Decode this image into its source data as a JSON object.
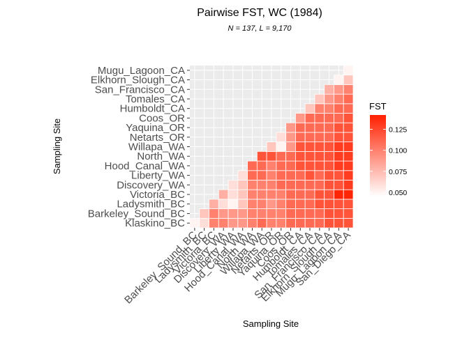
{
  "chart_data": {
    "type": "heatmap",
    "title": "Pairwise FST, WC (1984)",
    "subtitle": "N = 137, L = 9,170",
    "xlabel": "Sampling Site",
    "ylabel": "Sampling Site",
    "x_categories": [
      "Barkeley_Sound_BC",
      "Ladysmith_BC",
      "Victoria_BC",
      "Discovery_WA",
      "Liberty_WA",
      "Hood_Canal_WA",
      "North_WA",
      "Willapa_WA",
      "Netarts_OR",
      "Yaquina_OR",
      "Coos_OR",
      "Humboldt_CA",
      "Tomales_CA",
      "San_Francisco_CA",
      "Elkhorn_Slough_CA",
      "Mugu_Lagoon_CA",
      "San_Diego_CA"
    ],
    "y_categories": [
      "Klaskino_BC",
      "Barkeley_Sound_BC",
      "Ladysmith_BC",
      "Victoria_BC",
      "Discovery_WA",
      "Liberty_WA",
      "Hood_Canal_WA",
      "North_WA",
      "Willapa_WA",
      "Netarts_OR",
      "Yaquina_OR",
      "Coos_OR",
      "Humboldt_CA",
      "Tomales_CA",
      "San_Francisco_CA",
      "Elkhorn_Slough_CA",
      "Mugu_Lagoon_CA"
    ],
    "values": [
      [
        0.05,
        0.06,
        0.1,
        0.1,
        0.09,
        0.09,
        0.1,
        0.11,
        0.1,
        0.1,
        0.11,
        0.11,
        0.11,
        0.11,
        0.12,
        0.12,
        0.12
      ],
      [
        null,
        0.07,
        0.1,
        0.09,
        0.09,
        0.09,
        0.1,
        0.1,
        0.1,
        0.1,
        0.11,
        0.11,
        0.11,
        0.11,
        0.12,
        0.12,
        0.12
      ],
      [
        null,
        null,
        0.08,
        0.06,
        0.05,
        0.07,
        0.1,
        0.1,
        0.09,
        0.1,
        0.11,
        0.11,
        0.11,
        0.12,
        0.12,
        0.12,
        0.12
      ],
      [
        null,
        null,
        null,
        0.08,
        0.06,
        0.07,
        0.1,
        0.1,
        0.1,
        0.1,
        0.11,
        0.11,
        0.11,
        0.12,
        0.12,
        0.14,
        0.14
      ],
      [
        null,
        null,
        null,
        null,
        0.06,
        0.07,
        0.1,
        0.1,
        0.1,
        0.11,
        0.11,
        0.11,
        0.11,
        0.11,
        0.12,
        0.12,
        0.13
      ],
      [
        null,
        null,
        null,
        null,
        null,
        0.06,
        0.11,
        0.11,
        0.1,
        0.11,
        0.11,
        0.11,
        0.12,
        0.11,
        0.12,
        0.12,
        0.13
      ],
      [
        null,
        null,
        null,
        null,
        null,
        null,
        0.11,
        0.11,
        0.1,
        0.11,
        0.11,
        0.12,
        0.12,
        0.12,
        0.12,
        0.13,
        0.13
      ],
      [
        null,
        null,
        null,
        null,
        null,
        null,
        null,
        0.12,
        0.12,
        0.11,
        0.11,
        0.12,
        0.12,
        0.12,
        0.12,
        0.13,
        0.13
      ],
      [
        null,
        null,
        null,
        null,
        null,
        null,
        null,
        null,
        0.07,
        0.05,
        0.09,
        0.12,
        0.12,
        0.12,
        0.12,
        0.13,
        0.13
      ],
      [
        null,
        null,
        null,
        null,
        null,
        null,
        null,
        null,
        null,
        0.06,
        0.09,
        0.11,
        0.11,
        0.11,
        0.11,
        0.12,
        0.12
      ],
      [
        null,
        null,
        null,
        null,
        null,
        null,
        null,
        null,
        null,
        null,
        0.09,
        0.11,
        0.11,
        0.11,
        0.11,
        0.12,
        0.12
      ],
      [
        null,
        null,
        null,
        null,
        null,
        null,
        null,
        null,
        null,
        null,
        null,
        0.09,
        0.11,
        0.11,
        0.11,
        0.11,
        0.12
      ],
      [
        null,
        null,
        null,
        null,
        null,
        null,
        null,
        null,
        null,
        null,
        null,
        null,
        0.07,
        0.1,
        0.1,
        0.11,
        0.11
      ],
      [
        null,
        null,
        null,
        null,
        null,
        null,
        null,
        null,
        null,
        null,
        null,
        null,
        null,
        0.07,
        0.09,
        0.1,
        0.11
      ],
      [
        null,
        null,
        null,
        null,
        null,
        null,
        null,
        null,
        null,
        null,
        null,
        null,
        null,
        null,
        0.08,
        0.09,
        0.1
      ],
      [
        null,
        null,
        null,
        null,
        null,
        null,
        null,
        null,
        null,
        null,
        null,
        null,
        null,
        null,
        null,
        0.05,
        0.07
      ],
      [
        null,
        null,
        null,
        null,
        null,
        null,
        null,
        null,
        null,
        null,
        null,
        null,
        null,
        null,
        null,
        null,
        0.05
      ]
    ],
    "legend": {
      "title": "FST",
      "placement": "right",
      "ticks": [
        "0.125",
        "0.100",
        "0.075",
        "0.050"
      ],
      "range": [
        0.045,
        0.142
      ],
      "color_low": "#ffffff",
      "color_high": "#ff2000"
    },
    "grid": true,
    "panel_background": "#ebebeb"
  }
}
